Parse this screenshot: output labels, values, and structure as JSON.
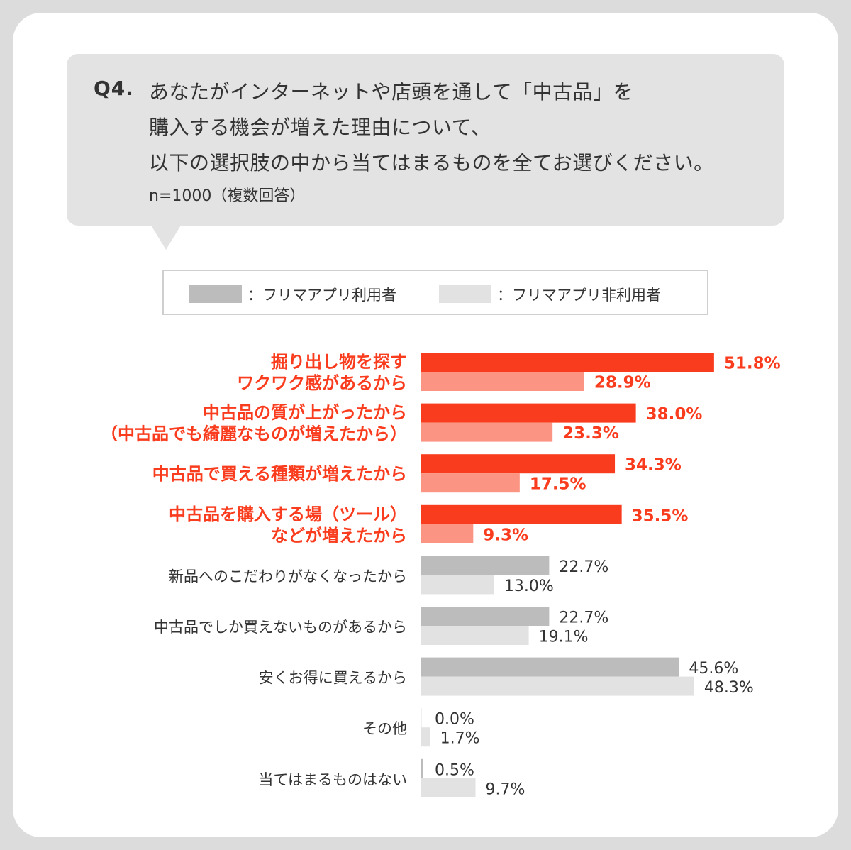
{
  "question": {
    "label": "Q4.",
    "lines": [
      "あなたがインターネットや店頭を通して「中古品」を",
      "購入する機会が増えた理由について、",
      "以下の選択肢の中から当てはまるものを全てお選びください。"
    ],
    "note": "n=1000（複数回答）"
  },
  "legend": {
    "users_label": "：フリマアプリ利用者",
    "nonusers_label": "：フリマアプリ非利用者"
  },
  "colors": {
    "highlight_users": "#fa3c1e",
    "highlight_nonusers": "#fb9482",
    "normal_users": "#bcbcbc",
    "normal_nonusers": "#e2e2e2",
    "highlight_text": "#fa3c1e",
    "normal_text": "#333333"
  },
  "chart_data": {
    "type": "bar",
    "orientation": "horizontal",
    "unit": "%",
    "xlim": [
      0,
      100
    ],
    "series": [
      {
        "name": "フリマアプリ利用者",
        "values": [
          51.8,
          38.0,
          34.3,
          35.5,
          22.7,
          22.7,
          45.6,
          0.0,
          0.5
        ]
      },
      {
        "name": "フリマアプリ非利用者",
        "values": [
          28.9,
          23.3,
          17.5,
          9.3,
          13.0,
          19.1,
          48.3,
          1.7,
          9.7
        ]
      }
    ],
    "categories": [
      {
        "lines": [
          "掘り出し物を探す",
          "ワクワク感があるから"
        ],
        "highlight": true
      },
      {
        "lines": [
          "中古品の質が上がったから",
          "（中古品でも綺麗なものが増えたから）"
        ],
        "highlight": true
      },
      {
        "lines": [
          "中古品で買える種類が増えたから"
        ],
        "highlight": true
      },
      {
        "lines": [
          "中古品を購入する場（ツール）",
          "などが増えたから"
        ],
        "highlight": true
      },
      {
        "lines": [
          "新品へのこだわりがなくなったから"
        ],
        "highlight": false
      },
      {
        "lines": [
          "中古品でしか買えないものがあるから"
        ],
        "highlight": false
      },
      {
        "lines": [
          "安くお得に買えるから"
        ],
        "highlight": false
      },
      {
        "lines": [
          "その他"
        ],
        "highlight": false
      },
      {
        "lines": [
          "当てはまるものはない"
        ],
        "highlight": false
      }
    ],
    "value_labels": [
      [
        "51.8%",
        "28.9%"
      ],
      [
        "38.0%",
        "23.3%"
      ],
      [
        "34.3%",
        "17.5%"
      ],
      [
        "35.5%",
        "9.3%"
      ],
      [
        "22.7%",
        "13.0%"
      ],
      [
        "22.7%",
        "19.1%"
      ],
      [
        "45.6%",
        "48.3%"
      ],
      [
        "0.0%",
        "1.7%"
      ],
      [
        "0.5%",
        "9.7%"
      ]
    ]
  }
}
